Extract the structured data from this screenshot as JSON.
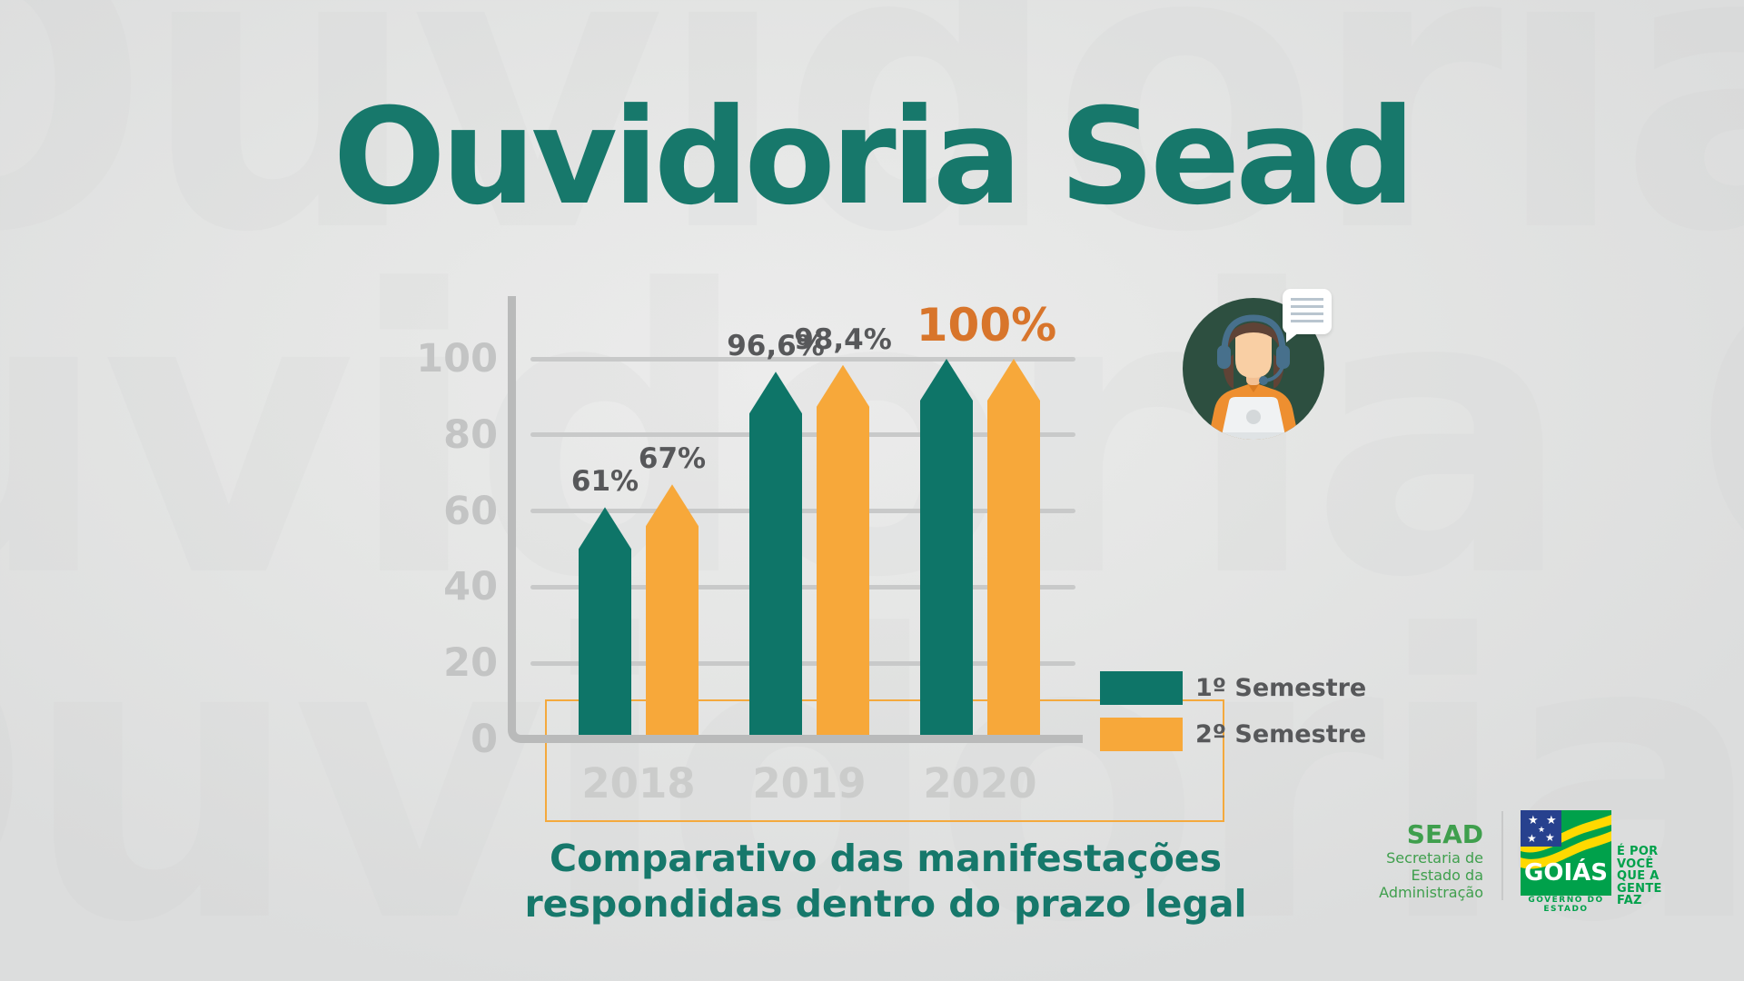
{
  "title": "Ouvidoria Sead",
  "watermark": "Ouvidoria Ouvidoria",
  "caption": {
    "line1": "Comparativo das manifestações",
    "line2": "respondidas dentro do prazo legal"
  },
  "chart_data": {
    "type": "bar",
    "categories": [
      "2018",
      "2019",
      "2020"
    ],
    "series": [
      {
        "name": "1º Semestre",
        "color": "#0e7568",
        "values": [
          61,
          96.6,
          100
        ]
      },
      {
        "name": "2º Semestre",
        "color": "#f7a83a",
        "values": [
          67,
          98.4,
          100
        ]
      }
    ],
    "value_labels": [
      [
        "61%",
        "67%"
      ],
      [
        "96,6%",
        "98,4%"
      ],
      [
        "",
        ""
      ]
    ],
    "highlight_label": "100%",
    "ylim": [
      0,
      100
    ],
    "yticks": [
      0,
      20,
      40,
      60,
      80,
      100
    ],
    "xlabel": "",
    "ylabel": "",
    "grid": true,
    "legend_position": "right-bottom"
  },
  "legend": {
    "item1": "1º Semestre",
    "item2": "2º Semestre"
  },
  "footer": {
    "sead": {
      "name": "SEAD",
      "line1": "Secretaria de",
      "line2": "Estado da",
      "line3": "Administração"
    },
    "goias": {
      "flag_text": "GOIÁS",
      "government": "GOVERNO DO ESTADO",
      "slogan_lines": [
        "É POR",
        "VOCÊ",
        "QUE A",
        "GENTE",
        "FAZ"
      ]
    }
  },
  "colors": {
    "title_teal": "#17786b",
    "caption_teal": "#16786b",
    "bar_teal": "#0e7568",
    "bar_orange": "#f7a83a",
    "highlight_orange": "#d8752b",
    "frame_orange": "#f4a93d",
    "axis_gray": "#b9baba",
    "grid_gray": "#c8c9c9",
    "tick_label_gray": "#c3c4c4",
    "year_label_gray": "#cbcccb",
    "value_label_gray": "#57585a",
    "sead_green": "#3f9f4d",
    "goias_green": "#00a14b",
    "flag_yellow": "#ffd900",
    "flag_blue": "#27418e",
    "icon_circle_green": "#2d4f40"
  }
}
